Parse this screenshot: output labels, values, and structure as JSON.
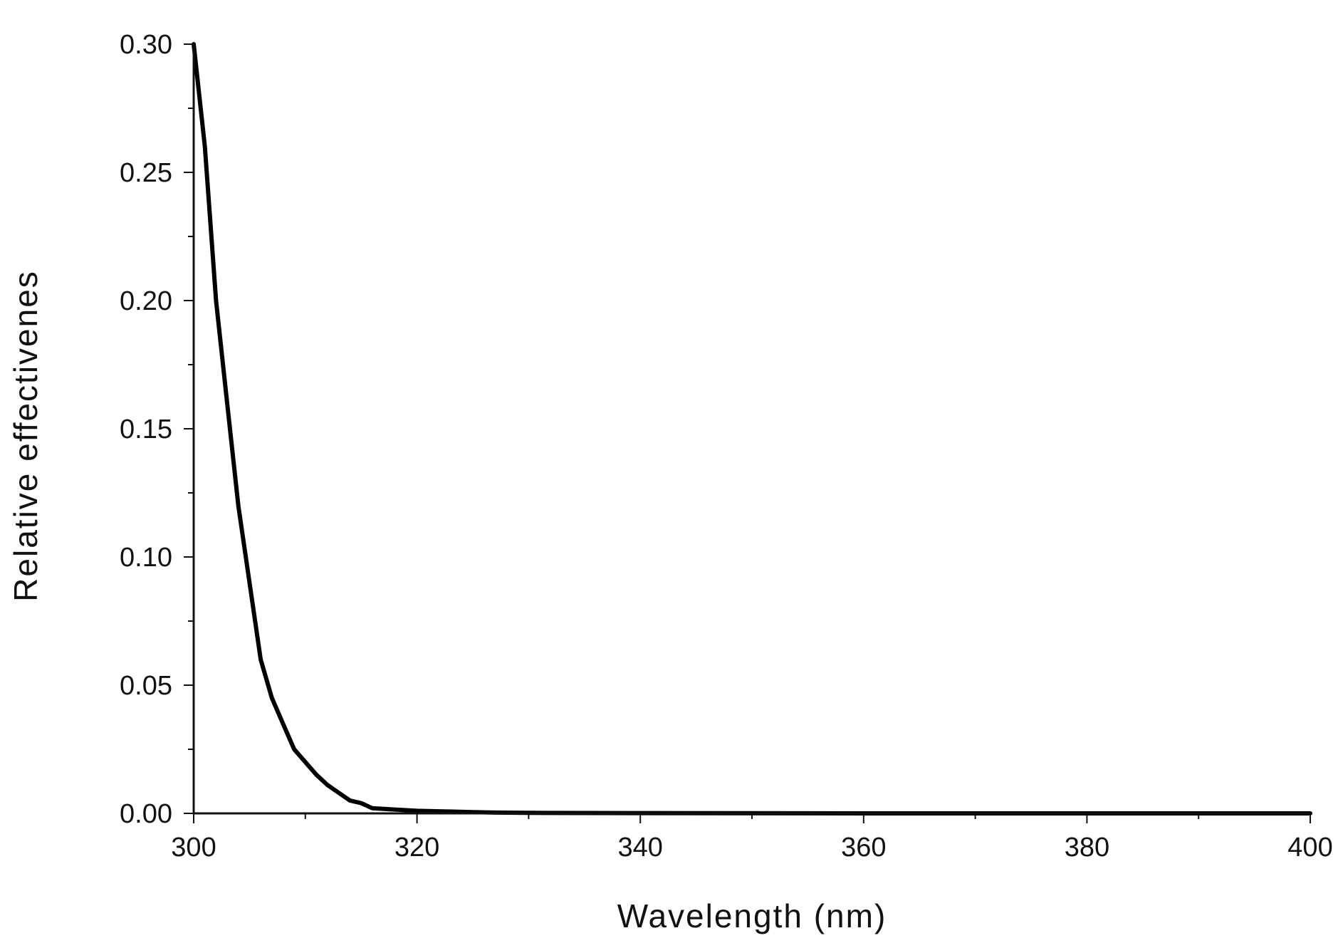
{
  "chart_data": {
    "type": "line",
    "title": "",
    "xlabel": "Wavelength (nm)",
    "ylabel": "Relative effectivenes",
    "xlim": [
      300,
      400
    ],
    "ylim": [
      0,
      0.3
    ],
    "grid": false,
    "legend": "none",
    "x_ticks": [
      300,
      320,
      340,
      360,
      380,
      400
    ],
    "x_tick_labels": [
      "300",
      "320",
      "340",
      "360",
      "380",
      "400"
    ],
    "y_ticks": [
      0,
      0.05,
      0.1,
      0.15,
      0.2,
      0.25,
      0.3
    ],
    "y_tick_labels": [
      "0.00",
      "0.05",
      "0.10",
      "0.15",
      "0.20",
      "0.25",
      "0.30"
    ],
    "series": [
      {
        "color": "#000000",
        "x": [
          300,
          301,
          302,
          303,
          304,
          305,
          306,
          307,
          308,
          309,
          310,
          311,
          312,
          313,
          314,
          315,
          316,
          318,
          320,
          322,
          325,
          327,
          330,
          340,
          360,
          380,
          400
        ],
        "y": [
          0.3,
          0.26,
          0.2,
          0.16,
          0.12,
          0.09,
          0.06,
          0.045,
          0.035,
          0.025,
          0.02,
          0.015,
          0.011,
          0.008,
          0.005,
          0.004,
          0.002,
          0.0015,
          0.001,
          0.0008,
          0.0005,
          0.0003,
          0.0002,
          0.0001,
          0.0,
          0.0,
          0.0
        ]
      }
    ]
  }
}
